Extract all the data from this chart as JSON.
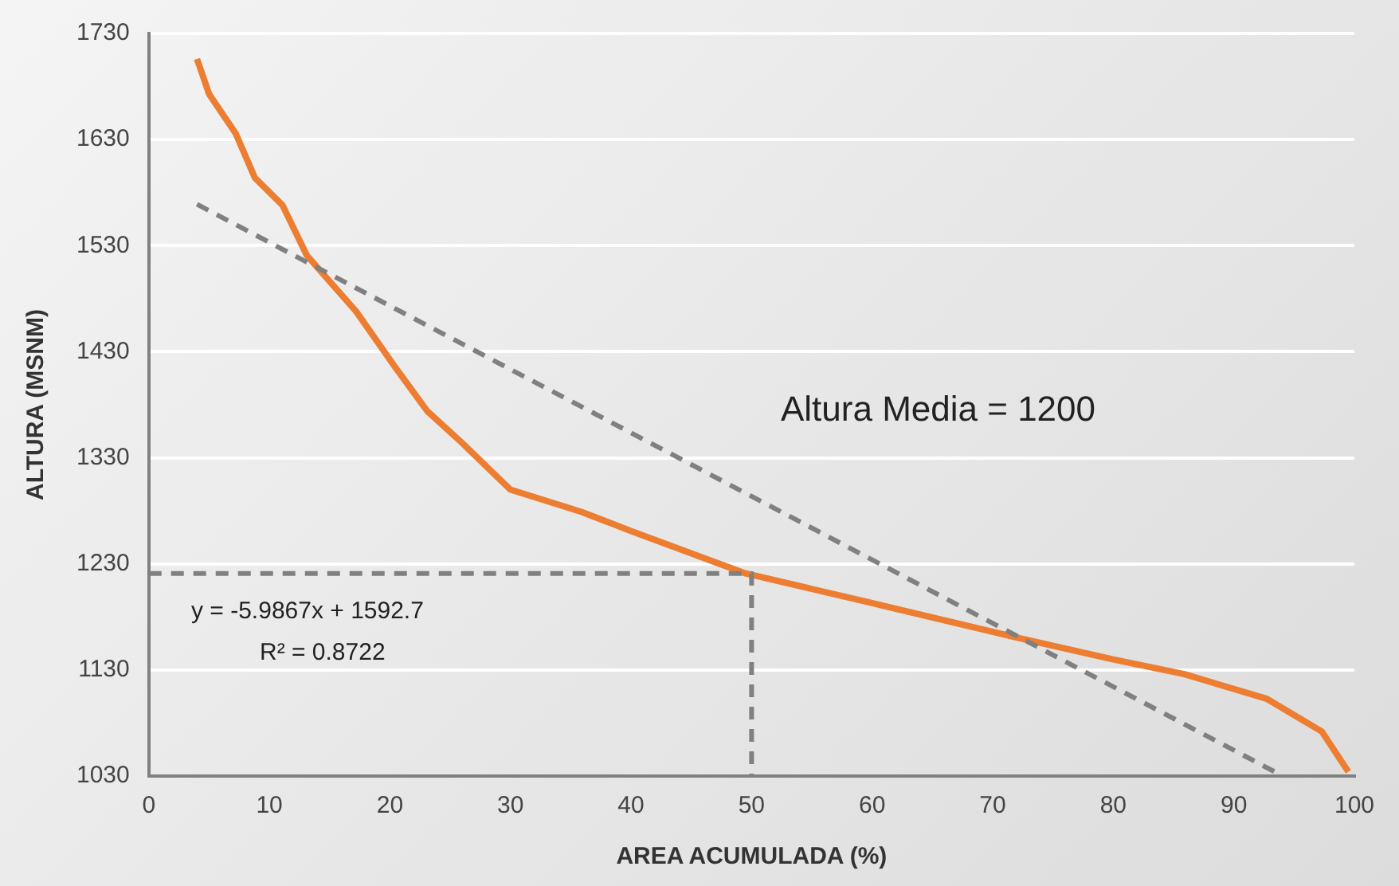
{
  "chart_data": {
    "type": "line",
    "xlabel": "AREA ACUMULADA (%)",
    "ylabel": "ALTURA (MSNM)",
    "x": [
      4.0,
      5.0,
      7.2,
      8.8,
      11.1,
      13.1,
      17.2,
      20.4,
      23.1,
      25.9,
      30,
      35.9,
      40,
      49.5,
      60,
      72.2,
      80,
      85.9,
      92.7,
      97.3,
      99.5
    ],
    "series": [
      {
        "color": "#ed7d31",
        "values": [
          1706,
          1673,
          1636,
          1594,
          1568,
          1521,
          1468,
          1416,
          1374,
          1345,
          1300,
          1279,
          1261,
          1221,
          1193,
          1160,
          1140,
          1126,
          1103,
          1072,
          1034
        ]
      },
      {
        "type": "line",
        "color": "#808080",
        "line_style": "dashed",
        "x": [
          4,
          93.9
        ],
        "values": [
          1569,
          1031
        ]
      },
      {
        "type": "line",
        "color": "#808080",
        "line_style": "dashed",
        "x": [
          0,
          50,
          50
        ],
        "values": [
          1221,
          1221,
          1030
        ]
      }
    ],
    "xlim": [
      0,
      100
    ],
    "xticks": [
      0,
      10,
      20,
      30,
      40,
      50,
      60,
      70,
      80,
      90,
      100
    ],
    "ylim": [
      1030,
      1730
    ],
    "yticks": [
      1030,
      1130,
      1230,
      1330,
      1430,
      1530,
      1630,
      1730
    ],
    "grid": "y",
    "legend": false,
    "marker": "none",
    "line_style": "solid",
    "annotations": [
      "Altura Media = 1200",
      "y = -5.9867x + 1592.7",
      "R² = 0.8722"
    ]
  }
}
